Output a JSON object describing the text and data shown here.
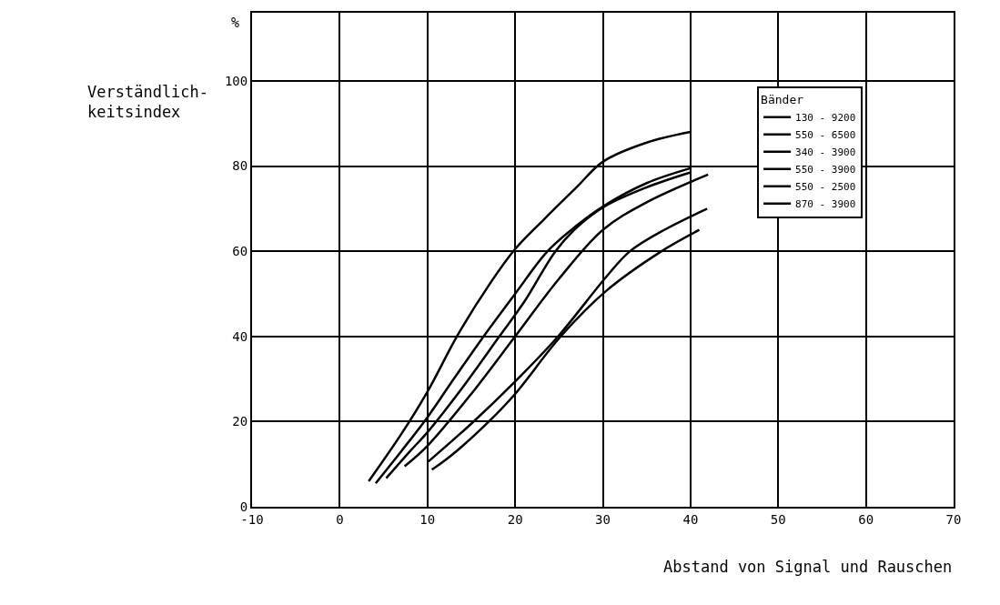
{
  "chart_data": {
    "type": "line",
    "xlabel": "Abstand von Signal und Rauschen",
    "ylabel": "Verständlich-\nkeitsindex",
    "legend_title": "Bänder",
    "annotations": [
      "%"
    ],
    "xlim": [
      -10,
      70
    ],
    "ylim": [
      0,
      116
    ],
    "xticks": [
      -10,
      0,
      10,
      20,
      30,
      40,
      50,
      60,
      70
    ],
    "yticks": [
      0,
      20,
      40,
      60,
      80,
      100
    ],
    "grid": true,
    "legend": "top right",
    "marker": "none",
    "line_style": "solid",
    "series": [
      {
        "name": "130 - 9200",
        "color": "#000000",
        "x": [
          3.3,
          7,
          10,
          13.5,
          17,
          20,
          23.3,
          27,
          30,
          35,
          40
        ],
        "values": [
          6,
          17,
          27,
          40.5,
          52,
          60.5,
          67.5,
          75,
          81,
          85.5,
          88
        ]
      },
      {
        "name": "550 - 6500",
        "color": "#000000",
        "x": [
          4.1,
          7,
          10,
          13,
          16.3,
          20,
          23.7,
          27,
          30,
          35,
          40
        ],
        "values": [
          5.5,
          13,
          21,
          30,
          39.7,
          50,
          60,
          66,
          70.5,
          76,
          79.5
        ]
      },
      {
        "name": "340 - 3900",
        "color": "#000000",
        "x": [
          5.3,
          8,
          10,
          14,
          18.2,
          21,
          24.6,
          27,
          30.2,
          35,
          40
        ],
        "values": [
          6.7,
          13,
          17.5,
          28,
          40,
          48,
          60,
          65.5,
          70.5,
          75,
          78.5
        ]
      },
      {
        "name": "550 - 3900",
        "color": "#000000",
        "x": [
          7.4,
          10,
          15,
          20,
          25,
          30,
          35,
          42
        ],
        "values": [
          9.5,
          14.3,
          26.5,
          40,
          53.5,
          65,
          71.5,
          78
        ]
      },
      {
        "name": "550 - 2500",
        "color": "#000000",
        "x": [
          10.1,
          15,
          20,
          24.9,
          30.4,
          33.1,
          37,
          41.9
        ],
        "values": [
          10.6,
          19.5,
          29.4,
          40,
          54,
          60,
          65,
          70
        ]
      },
      {
        "name": "870 - 3900",
        "color": "#000000",
        "x": [
          10.5,
          12.7,
          17,
          20,
          25.2,
          30.4,
          36.7,
          41
        ],
        "values": [
          8.7,
          12,
          20,
          26.5,
          40,
          50.7,
          60,
          65
        ]
      }
    ]
  }
}
